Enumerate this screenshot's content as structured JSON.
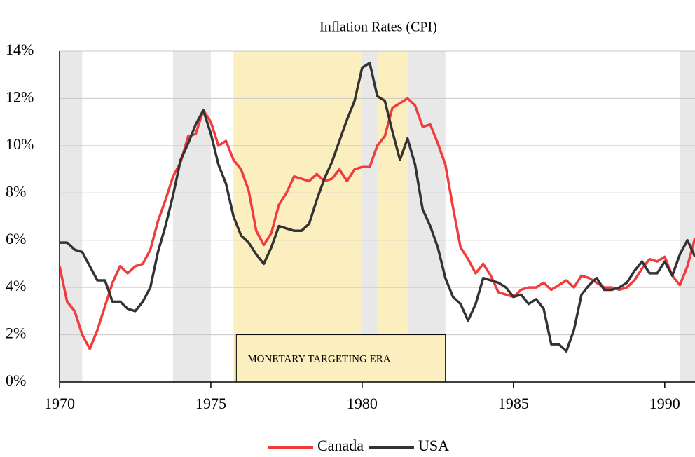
{
  "chart_data": {
    "type": "line",
    "title": "Inflation Rates (CPI)",
    "annotation": "MONETARY TARGETING ERA",
    "x": [
      1970,
      1970.25,
      1970.5,
      1970.75,
      1971,
      1971.25,
      1971.5,
      1971.75,
      1972,
      1972.25,
      1972.5,
      1972.75,
      1973,
      1973.25,
      1973.5,
      1973.75,
      1974,
      1974.25,
      1974.5,
      1974.75,
      1975,
      1975.25,
      1975.5,
      1975.75,
      1976,
      1976.25,
      1976.5,
      1976.75,
      1977,
      1977.25,
      1977.5,
      1977.75,
      1978,
      1978.25,
      1978.5,
      1978.75,
      1979,
      1979.25,
      1979.5,
      1979.75,
      1980,
      1980.25,
      1980.5,
      1980.75,
      1981,
      1981.25,
      1981.5,
      1981.75,
      1982,
      1982.25,
      1982.5,
      1982.75,
      1983,
      1983.25,
      1983.5,
      1983.75,
      1984,
      1984.25,
      1984.5,
      1984.75,
      1985,
      1985.25,
      1985.5,
      1985.75,
      1986,
      1986.25,
      1986.5,
      1986.75,
      1987,
      1987.25,
      1987.5,
      1987.75,
      1988,
      1988.25,
      1988.5,
      1988.75,
      1989,
      1989.25,
      1989.5,
      1989.75,
      1990,
      1990.25,
      1990.5,
      1990.75,
      1991
    ],
    "series": [
      {
        "name": "Canada",
        "color": "#f03c3c",
        "values": [
          4.9,
          3.4,
          3.0,
          2.0,
          1.4,
          2.2,
          3.2,
          4.2,
          4.9,
          4.6,
          4.9,
          5.0,
          5.6,
          6.8,
          7.7,
          8.7,
          9.3,
          10.4,
          10.5,
          11.5,
          11.0,
          10.0,
          10.2,
          9.4,
          9.0,
          8.1,
          6.4,
          5.8,
          6.3,
          7.5,
          8.0,
          8.7,
          8.6,
          8.5,
          8.8,
          8.5,
          8.6,
          9.0,
          8.5,
          9.0,
          9.1,
          9.1,
          10.0,
          10.4,
          11.6,
          11.8,
          12.0,
          11.7,
          10.8,
          10.9,
          10.1,
          9.2,
          7.4,
          5.7,
          5.2,
          4.6,
          5.0,
          4.5,
          3.8,
          3.7,
          3.6,
          3.9,
          4.0,
          4.0,
          4.2,
          3.9,
          4.1,
          4.3,
          4.0,
          4.5,
          4.4,
          4.2,
          4.0,
          4.0,
          3.9,
          4.0,
          4.3,
          4.8,
          5.2,
          5.1,
          5.3,
          4.5,
          4.1,
          4.9,
          6.1
        ]
      },
      {
        "name": "USA",
        "color": "#333333",
        "values": [
          5.9,
          5.9,
          5.6,
          5.5,
          4.9,
          4.3,
          4.3,
          3.4,
          3.4,
          3.1,
          3.0,
          3.4,
          4.0,
          5.5,
          6.6,
          7.9,
          9.4,
          10.1,
          10.9,
          11.5,
          10.5,
          9.2,
          8.4,
          7.0,
          6.2,
          5.9,
          5.4,
          5.0,
          5.7,
          6.6,
          6.5,
          6.4,
          6.4,
          6.7,
          7.7,
          8.6,
          9.3,
          10.2,
          11.1,
          11.9,
          13.3,
          13.5,
          12.1,
          11.9,
          10.6,
          9.4,
          10.3,
          9.2,
          7.3,
          6.6,
          5.7,
          4.4,
          3.6,
          3.3,
          2.6,
          3.3,
          4.4,
          4.3,
          4.2,
          4.0,
          3.6,
          3.7,
          3.3,
          3.5,
          3.1,
          1.6,
          1.6,
          1.3,
          2.2,
          3.7,
          4.1,
          4.4,
          3.9,
          3.9,
          4.0,
          4.2,
          4.7,
          5.1,
          4.6,
          4.6,
          5.1,
          4.5,
          5.4,
          6.0,
          5.3
        ]
      }
    ],
    "shaded_regions": [
      {
        "start": 1975.75,
        "end": 1981.5,
        "color": "#fcefbf"
      },
      {
        "start": 1970,
        "end": 1970.75,
        "color": "#e8e8e8"
      },
      {
        "start": 1973.75,
        "end": 1975,
        "color": "#e8e8e8"
      },
      {
        "start": 1980,
        "end": 1980.5,
        "color": "#e8e8e8"
      },
      {
        "start": 1981.5,
        "end": 1982.75,
        "color": "#e8e8e8"
      },
      {
        "start": 1990.5,
        "end": 1991,
        "color": "#e8e8e8"
      }
    ],
    "xlim": [
      1970,
      1991
    ],
    "xticks": [
      1970,
      1975,
      1980,
      1985,
      1990
    ],
    "ylim": [
      0,
      14
    ],
    "yticks": [
      {
        "value": 0,
        "label": "0%"
      },
      {
        "value": 2,
        "label": "2%"
      },
      {
        "value": 4,
        "label": "4%"
      },
      {
        "value": 6,
        "label": "6%"
      },
      {
        "value": 8,
        "label": "8%"
      },
      {
        "value": 10,
        "label": "10%"
      },
      {
        "value": 12,
        "label": "12%"
      },
      {
        "value": 14,
        "label": "14%"
      }
    ],
    "grid": true,
    "legend": "bottom"
  }
}
